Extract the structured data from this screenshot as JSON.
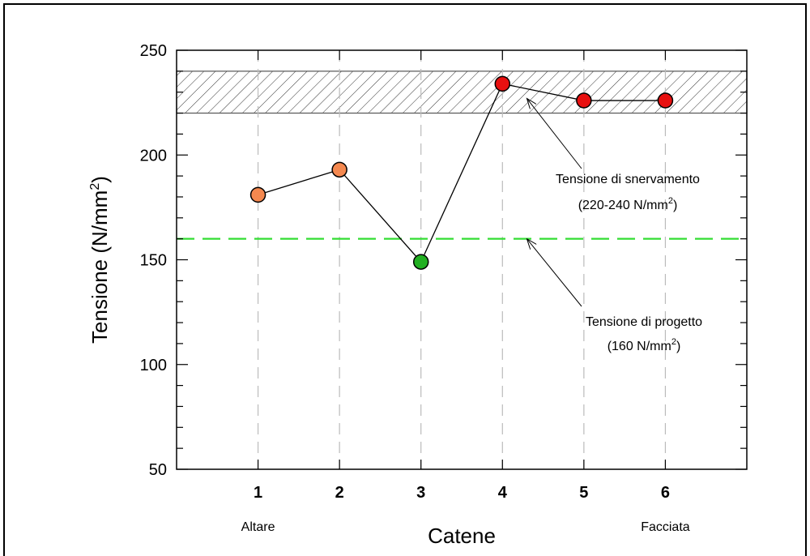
{
  "chart_data": {
    "type": "line",
    "title": "",
    "xlabel": "Catene",
    "ylabel_main": "Tensione (N/mm",
    "ylabel_sup": "2",
    "ylabel_end": ")",
    "ylim": [
      50,
      250
    ],
    "yticks": [
      50,
      100,
      150,
      200,
      250
    ],
    "y_minor_step": 10,
    "xlim": [
      0,
      7
    ],
    "x": [
      1,
      2,
      3,
      4,
      5,
      6
    ],
    "categories": [
      "1",
      "2",
      "3",
      "4",
      "5",
      "6"
    ],
    "category_notes": [
      {
        "x": 1,
        "text": "Altare"
      },
      {
        "x": 6,
        "text": "Facciata"
      }
    ],
    "grid": "vertical dashed at categories",
    "series": [
      {
        "values": [
          181,
          193,
          149,
          234,
          226,
          226
        ],
        "point_colors": [
          "#f4884f",
          "#f4884f",
          "#22b022",
          "#e81010",
          "#e81010",
          "#e81010"
        ]
      }
    ],
    "bands": [
      {
        "from": 220,
        "to": 240,
        "pattern": "hatched"
      }
    ],
    "reference_lines": [
      {
        "y": 160,
        "style": "dashed",
        "color": "#33dd33"
      }
    ],
    "annotations": [
      {
        "line1": "Tensione di snervamento",
        "line2_main": "(220-240 N/mm",
        "line2_sup": "2",
        "line2_end": ")",
        "points_to": {
          "x": 4.3,
          "y": 227
        }
      },
      {
        "line1": "Tensione di progetto",
        "line2_main": "(160 N/mm",
        "line2_sup": "2",
        "line2_end": ")",
        "points_to": {
          "x": 4.3,
          "y": 160
        }
      }
    ],
    "legend": "none"
  }
}
